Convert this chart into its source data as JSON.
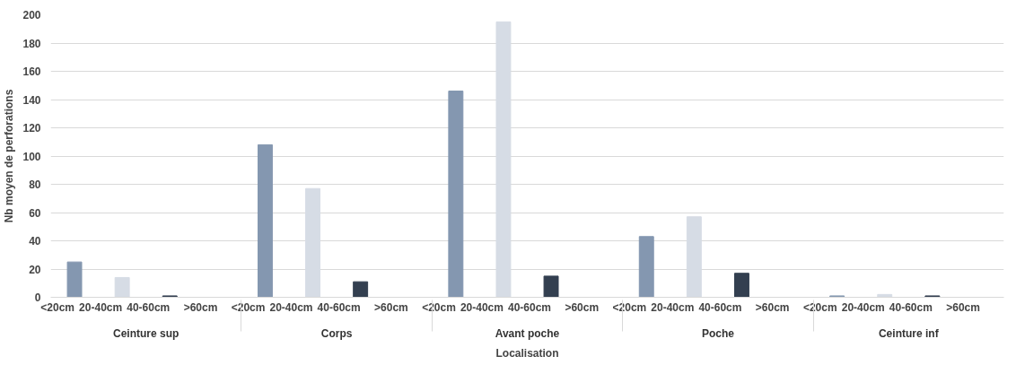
{
  "chart_data": {
    "type": "bar",
    "xlabel": "Localisation",
    "ylabel": "Nb moyen de perforations",
    "categories": [
      "Ceinture sup",
      "Corps",
      "Avant poche",
      "Poche",
      "Ceinture inf"
    ],
    "series": [
      {
        "name": "<20cm",
        "color": "#8497b0",
        "values": [
          25,
          108,
          146,
          43,
          1
        ]
      },
      {
        "name": "20-40cm",
        "color": "#d6dce5",
        "values": [
          14,
          77,
          195,
          57,
          2
        ]
      },
      {
        "name": "40-60cm",
        "color": "#333f50",
        "values": [
          1,
          11,
          15,
          17,
          1
        ]
      },
      {
        "name": ">60cm",
        "color": "#1f3864",
        "values": [
          0,
          0,
          0,
          0,
          0
        ]
      }
    ],
    "ylim": [
      0,
      200
    ],
    "yticks": [
      0,
      20,
      40,
      60,
      80,
      100,
      120,
      140,
      160,
      180,
      200
    ],
    "grid": "y",
    "legend": false
  }
}
